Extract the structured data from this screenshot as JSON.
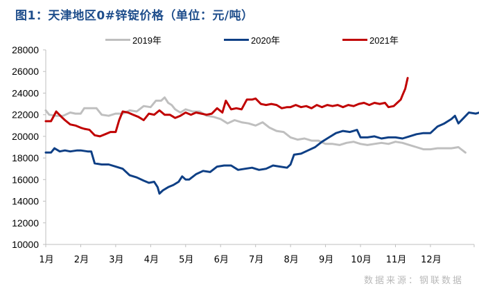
{
  "title": "图1：天津地区0#锌锭价格（单位：元/吨）",
  "source": "数据来源：钢联数据",
  "legend": [
    {
      "label": "2019年",
      "color": "#bfbfbf"
    },
    {
      "label": "2020年",
      "color": "#0e3f85"
    },
    {
      "label": "2021年",
      "color": "#c00000"
    }
  ],
  "chart_data": {
    "type": "line",
    "title": "天津地区0#锌锭价格（单位：元/吨）",
    "xlabel": "",
    "ylabel": "元/吨",
    "ylim": [
      10000,
      28000
    ],
    "yticks": [
      10000,
      12000,
      14000,
      16000,
      18000,
      20000,
      22000,
      24000,
      26000,
      28000
    ],
    "categories": [
      "1月",
      "2月",
      "3月",
      "4月",
      "5月",
      "6月",
      "7月",
      "8月",
      "9月",
      "10月",
      "11月",
      "12月"
    ],
    "grid": false,
    "legend_position": "top",
    "x_note": "x values are month positions (0 = start of Jan, 12 = end of Dec)",
    "series": [
      {
        "name": "2019年",
        "color": "#bfbfbf",
        "points": [
          [
            0.0,
            22400
          ],
          [
            0.1,
            22000
          ],
          [
            0.3,
            21900
          ],
          [
            0.5,
            21900
          ],
          [
            0.7,
            22200
          ],
          [
            0.85,
            22100
          ],
          [
            1.0,
            22100
          ],
          [
            1.1,
            22600
          ],
          [
            1.3,
            22600
          ],
          [
            1.45,
            22600
          ],
          [
            1.6,
            22000
          ],
          [
            1.8,
            21900
          ],
          [
            2.0,
            22100
          ],
          [
            2.2,
            22100
          ],
          [
            2.4,
            22400
          ],
          [
            2.6,
            22300
          ],
          [
            2.8,
            22800
          ],
          [
            3.0,
            22700
          ],
          [
            3.15,
            23300
          ],
          [
            3.3,
            23300
          ],
          [
            3.4,
            23600
          ],
          [
            3.5,
            23100
          ],
          [
            3.6,
            22900
          ],
          [
            3.7,
            22500
          ],
          [
            3.85,
            22200
          ],
          [
            4.0,
            22500
          ],
          [
            4.2,
            22300
          ],
          [
            4.4,
            22300
          ],
          [
            4.6,
            21900
          ],
          [
            4.8,
            21800
          ],
          [
            5.0,
            21600
          ],
          [
            5.2,
            21200
          ],
          [
            5.4,
            21500
          ],
          [
            5.6,
            21300
          ],
          [
            5.8,
            21200
          ],
          [
            6.0,
            21000
          ],
          [
            6.2,
            21300
          ],
          [
            6.4,
            20800
          ],
          [
            6.6,
            20500
          ],
          [
            6.8,
            20400
          ],
          [
            7.0,
            19900
          ],
          [
            7.2,
            19700
          ],
          [
            7.4,
            19800
          ],
          [
            7.6,
            19600
          ],
          [
            7.8,
            19600
          ],
          [
            8.0,
            19300
          ],
          [
            8.2,
            19300
          ],
          [
            8.4,
            19200
          ],
          [
            8.6,
            19400
          ],
          [
            8.8,
            19500
          ],
          [
            9.0,
            19300
          ],
          [
            9.2,
            19200
          ],
          [
            9.4,
            19300
          ],
          [
            9.6,
            19400
          ],
          [
            9.8,
            19300
          ],
          [
            10.0,
            19500
          ],
          [
            10.2,
            19400
          ],
          [
            10.4,
            19200
          ],
          [
            10.6,
            19000
          ],
          [
            10.8,
            18800
          ],
          [
            11.0,
            18800
          ],
          [
            11.2,
            18900
          ],
          [
            11.4,
            18900
          ],
          [
            11.6,
            18900
          ],
          [
            11.8,
            19000
          ],
          [
            12.0,
            18500
          ]
        ]
      },
      {
        "name": "2020年",
        "color": "#0e3f85",
        "points": [
          [
            0.0,
            18500
          ],
          [
            0.15,
            18500
          ],
          [
            0.25,
            18900
          ],
          [
            0.4,
            18600
          ],
          [
            0.55,
            18700
          ],
          [
            0.7,
            18600
          ],
          [
            0.9,
            18700
          ],
          [
            1.0,
            18700
          ],
          [
            1.2,
            18600
          ],
          [
            1.3,
            18600
          ],
          [
            1.4,
            17500
          ],
          [
            1.6,
            17400
          ],
          [
            1.8,
            17400
          ],
          [
            2.0,
            17200
          ],
          [
            2.2,
            17000
          ],
          [
            2.4,
            16400
          ],
          [
            2.6,
            16200
          ],
          [
            2.8,
            15900
          ],
          [
            2.95,
            15700
          ],
          [
            3.1,
            15800
          ],
          [
            3.2,
            15300
          ],
          [
            3.25,
            14700
          ],
          [
            3.35,
            15000
          ],
          [
            3.5,
            15300
          ],
          [
            3.65,
            15500
          ],
          [
            3.8,
            15800
          ],
          [
            3.9,
            16300
          ],
          [
            4.0,
            16000
          ],
          [
            4.1,
            16000
          ],
          [
            4.3,
            16500
          ],
          [
            4.5,
            16800
          ],
          [
            4.7,
            16700
          ],
          [
            4.9,
            17200
          ],
          [
            5.1,
            17300
          ],
          [
            5.3,
            17300
          ],
          [
            5.5,
            16900
          ],
          [
            5.7,
            17000
          ],
          [
            5.9,
            17100
          ],
          [
            6.1,
            16900
          ],
          [
            6.3,
            17000
          ],
          [
            6.5,
            17300
          ],
          [
            6.7,
            17200
          ],
          [
            6.9,
            17100
          ],
          [
            7.0,
            17400
          ],
          [
            7.1,
            18300
          ],
          [
            7.3,
            18400
          ],
          [
            7.5,
            18700
          ],
          [
            7.7,
            19000
          ],
          [
            7.9,
            19500
          ],
          [
            8.1,
            19900
          ],
          [
            8.3,
            20300
          ],
          [
            8.5,
            20500
          ],
          [
            8.7,
            20400
          ],
          [
            8.9,
            20600
          ],
          [
            9.0,
            19900
          ],
          [
            9.2,
            19900
          ],
          [
            9.4,
            20000
          ],
          [
            9.6,
            19800
          ],
          [
            9.8,
            19900
          ],
          [
            10.0,
            19900
          ],
          [
            10.2,
            19800
          ],
          [
            10.4,
            20000
          ],
          [
            10.6,
            20200
          ],
          [
            10.8,
            20300
          ],
          [
            11.0,
            20300
          ],
          [
            11.2,
            20900
          ],
          [
            11.4,
            21200
          ],
          [
            11.6,
            21600
          ],
          [
            11.7,
            21900
          ],
          [
            11.8,
            21200
          ],
          [
            11.95,
            21700
          ],
          [
            12.1,
            22200
          ],
          [
            12.3,
            22100
          ],
          [
            12.5,
            22300
          ],
          [
            12.6,
            21900
          ],
          [
            12.7,
            21500
          ],
          [
            12.8,
            21900
          ],
          [
            12.95,
            21400
          ]
        ]
      },
      {
        "name": "2021年",
        "color": "#c00000",
        "points": [
          [
            0.0,
            21400
          ],
          [
            0.15,
            21400
          ],
          [
            0.3,
            22300
          ],
          [
            0.45,
            21800
          ],
          [
            0.55,
            21500
          ],
          [
            0.7,
            21100
          ],
          [
            0.85,
            21000
          ],
          [
            1.0,
            20800
          ],
          [
            1.1,
            20700
          ],
          [
            1.25,
            20600
          ],
          [
            1.4,
            20100
          ],
          [
            1.55,
            20000
          ],
          [
            1.7,
            20200
          ],
          [
            1.85,
            20400
          ],
          [
            2.0,
            20400
          ],
          [
            2.1,
            21500
          ],
          [
            2.2,
            22300
          ],
          [
            2.35,
            22200
          ],
          [
            2.5,
            22000
          ],
          [
            2.65,
            21800
          ],
          [
            2.8,
            21500
          ],
          [
            2.95,
            22100
          ],
          [
            3.1,
            22000
          ],
          [
            3.25,
            22400
          ],
          [
            3.4,
            22000
          ],
          [
            3.55,
            22000
          ],
          [
            3.7,
            21700
          ],
          [
            3.85,
            21900
          ],
          [
            4.0,
            22200
          ],
          [
            4.15,
            22000
          ],
          [
            4.3,
            22200
          ],
          [
            4.45,
            22100
          ],
          [
            4.6,
            22000
          ],
          [
            4.75,
            22100
          ],
          [
            4.9,
            22600
          ],
          [
            5.05,
            22200
          ],
          [
            5.15,
            23300
          ],
          [
            5.3,
            22500
          ],
          [
            5.45,
            22600
          ],
          [
            5.6,
            22500
          ],
          [
            5.75,
            23400
          ],
          [
            5.9,
            23400
          ],
          [
            6.0,
            23500
          ],
          [
            6.15,
            23000
          ],
          [
            6.3,
            22900
          ],
          [
            6.45,
            23000
          ],
          [
            6.6,
            22900
          ],
          [
            6.75,
            22600
          ],
          [
            6.9,
            22700
          ],
          [
            7.0,
            22700
          ],
          [
            7.15,
            22900
          ],
          [
            7.3,
            22700
          ],
          [
            7.45,
            22800
          ],
          [
            7.6,
            22600
          ],
          [
            7.75,
            22900
          ],
          [
            7.9,
            22700
          ],
          [
            8.05,
            22900
          ],
          [
            8.2,
            22800
          ],
          [
            8.35,
            22900
          ],
          [
            8.5,
            22700
          ],
          [
            8.65,
            22900
          ],
          [
            8.8,
            22800
          ],
          [
            8.95,
            23000
          ],
          [
            9.1,
            23100
          ],
          [
            9.25,
            22900
          ],
          [
            9.4,
            23100
          ],
          [
            9.55,
            23000
          ],
          [
            9.7,
            23100
          ],
          [
            9.8,
            22700
          ],
          [
            9.95,
            22800
          ],
          [
            10.05,
            23100
          ],
          [
            10.15,
            23400
          ],
          [
            10.2,
            23800
          ],
          [
            10.28,
            24400
          ],
          [
            10.35,
            25400
          ]
        ]
      }
    ]
  }
}
